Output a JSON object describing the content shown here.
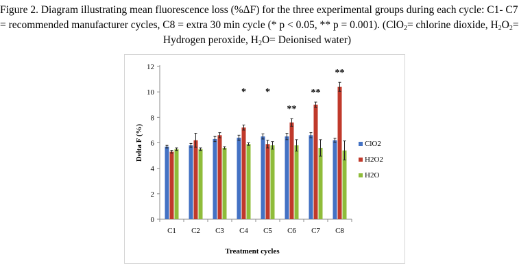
{
  "caption": {
    "line1": "Figure 2. Diagram illustrating mean fluorescence loss (%ΔF) for the three experimental groups during each cycle: C1- C7",
    "line2": "= recommended manufacturer cycles, C8 = extra 30 min cycle (* p < 0.05, ** p = 0.001). (ClO",
    "line2_sub1": "2",
    "line2_mid": "= chlorine dioxide, H",
    "line2_sub2": "2",
    "line2_o": "O",
    "line2_sub3": "2",
    "line2_end": "=",
    "line3_a": "Hydrogen peroxide, H",
    "line3_sub": "2",
    "line3_b": "O= Deionised water)"
  },
  "chart_data": {
    "type": "bar",
    "categories": [
      "C1",
      "C2",
      "C3",
      "C4",
      "C5",
      "C6",
      "C7",
      "C8"
    ],
    "series": [
      {
        "name": "ClO2",
        "color": "#4472c4",
        "values": [
          5.7,
          5.8,
          6.3,
          6.4,
          6.5,
          6.5,
          6.6,
          6.2
        ],
        "errors": [
          0.1,
          0.15,
          0.2,
          0.2,
          0.2,
          0.25,
          0.2,
          0.15
        ]
      },
      {
        "name": "H2O2",
        "color": "#c0392b",
        "values": [
          5.3,
          6.2,
          6.6,
          7.2,
          5.9,
          7.6,
          9.0,
          10.4
        ],
        "errors": [
          0.1,
          0.55,
          0.2,
          0.2,
          0.3,
          0.3,
          0.2,
          0.35
        ]
      },
      {
        "name": "H2O",
        "color": "#8fbc3a",
        "values": [
          5.5,
          5.5,
          5.6,
          5.9,
          5.8,
          5.8,
          5.6,
          5.4
        ],
        "errors": [
          0.1,
          0.1,
          0.1,
          0.1,
          0.3,
          0.45,
          0.65,
          0.75
        ]
      }
    ],
    "annotations": [
      "",
      "",
      "",
      "*",
      "*",
      "**",
      "**",
      "**"
    ],
    "xlabel": "Treatment cycles",
    "ylabel": "Delta F (%)",
    "ylim": [
      0,
      12
    ],
    "yticks": [
      0,
      2,
      4,
      6,
      8,
      10,
      12
    ],
    "legend": [
      "ClO2",
      "H2O2",
      "H2O"
    ],
    "legend_position": "right",
    "grid": false
  }
}
